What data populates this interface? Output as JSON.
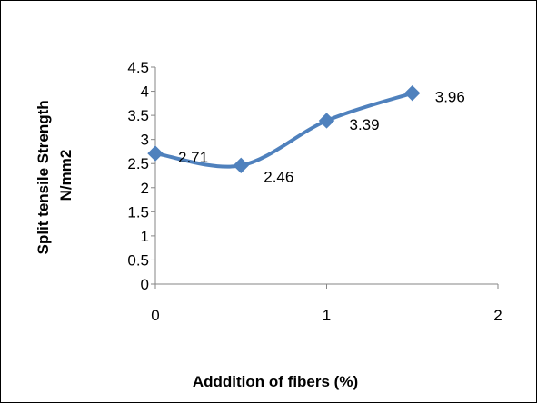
{
  "chart_data": {
    "type": "line",
    "title": "",
    "xlabel": "Adddition of fibers (%)",
    "ylabel_lines": [
      "Split tensile Strength",
      "N/mm2"
    ],
    "xlim": [
      0,
      2
    ],
    "ylim": [
      0,
      4.5
    ],
    "x_ticks": [
      0,
      1,
      2
    ],
    "x_tick_labels": [
      "0",
      "1",
      "2"
    ],
    "y_ticks": [
      0,
      0.5,
      1,
      1.5,
      2,
      2.5,
      3,
      3.5,
      4,
      4.5
    ],
    "y_tick_labels": [
      "0",
      "0.5",
      "1",
      "1.5",
      "2",
      "2.5",
      "3",
      "3.5",
      "4",
      "4.5"
    ],
    "grid": false,
    "legend": "none",
    "line_style": "smoothed",
    "marker": "diamond",
    "series": [
      {
        "x": [
          0,
          0.5,
          1,
          1.5
        ],
        "values": [
          2.71,
          2.46,
          3.39,
          3.96
        ],
        "data_labels": [
          "2.71",
          "2.46",
          "3.39",
          "3.96"
        ],
        "color": "#4F81BD"
      }
    ]
  }
}
